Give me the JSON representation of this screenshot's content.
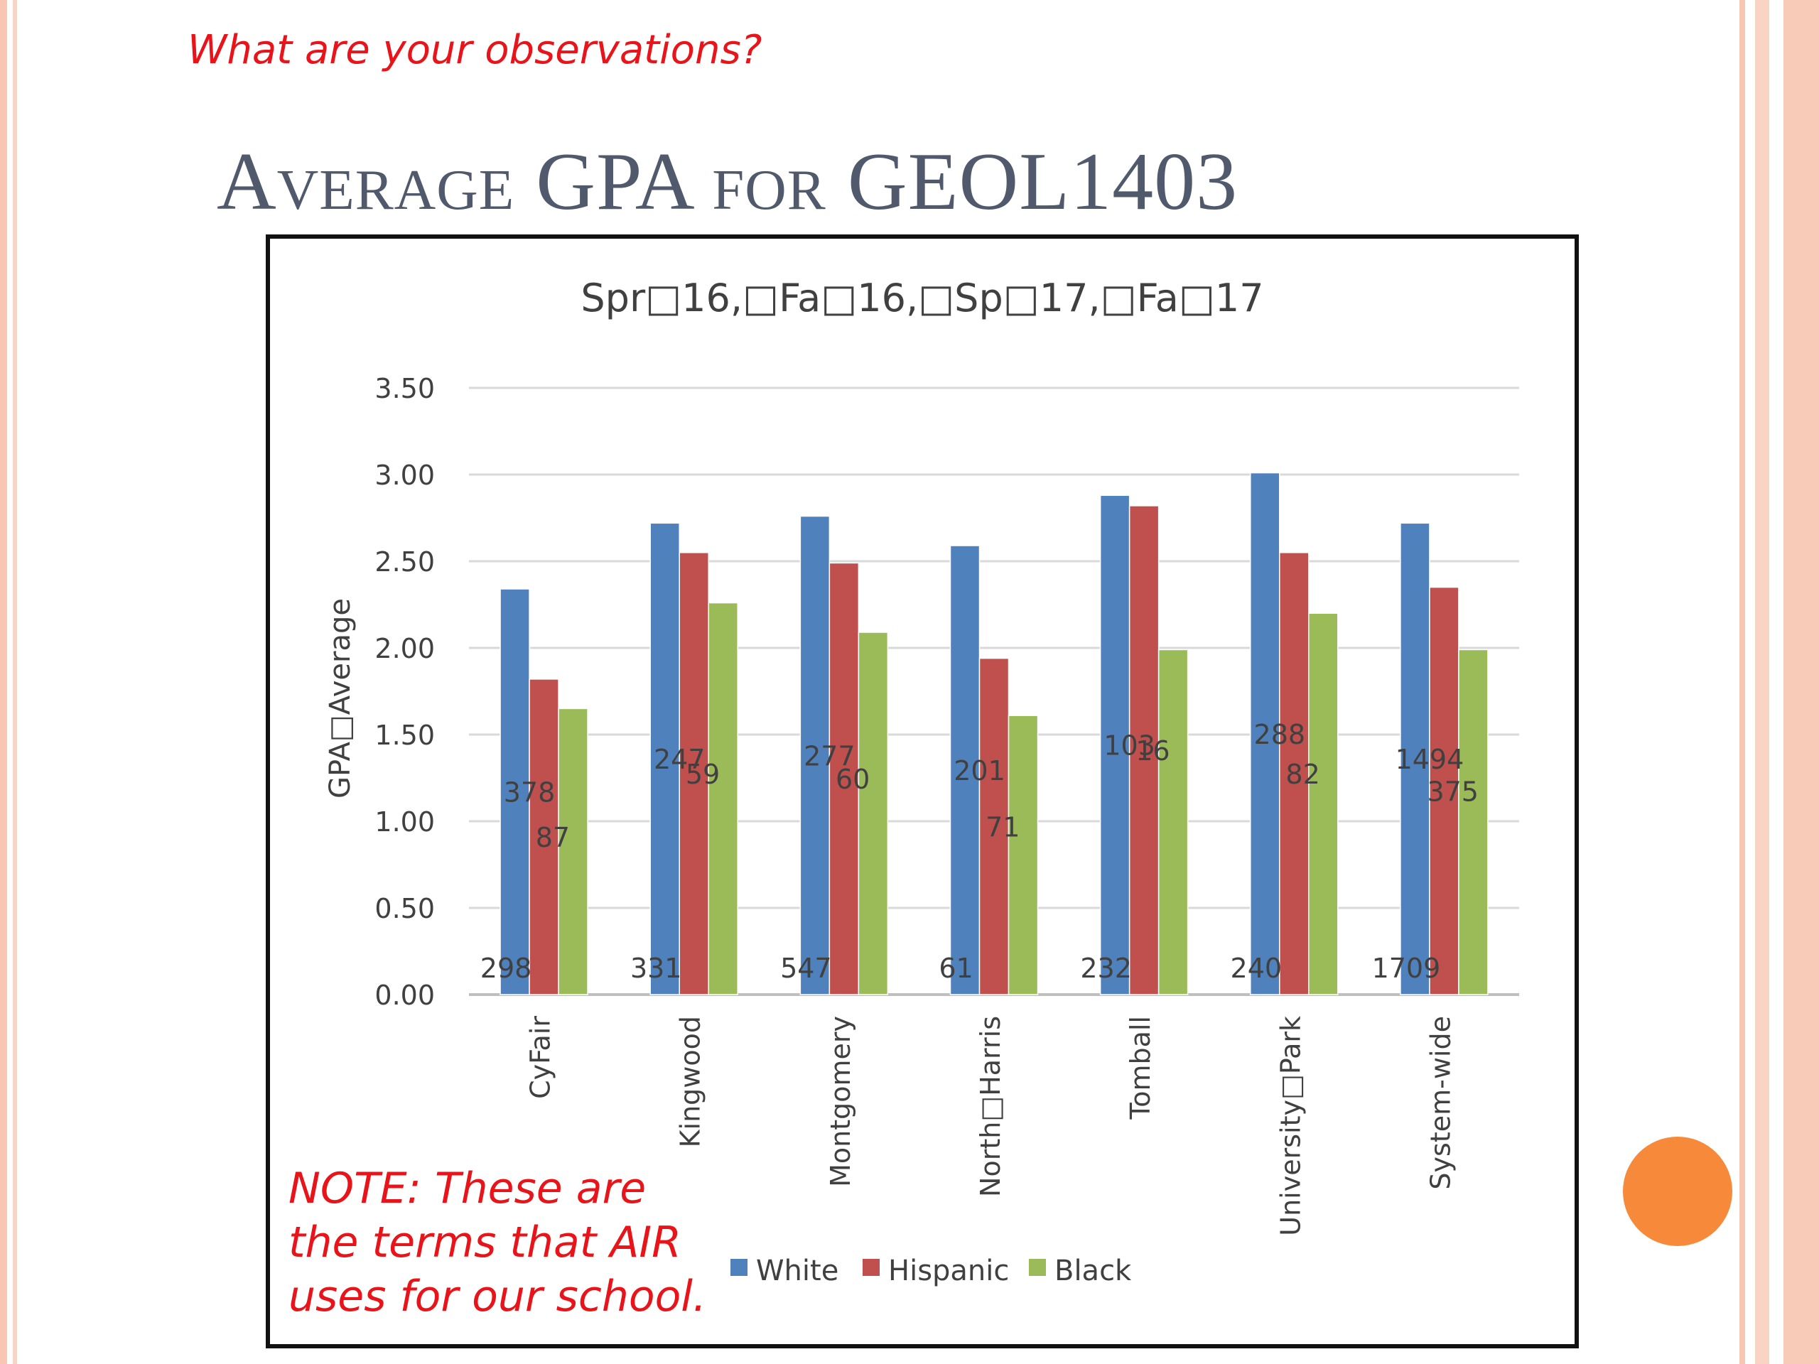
{
  "prompt": "What are your observations?",
  "slide_title": "Average GPA for GEOL1403",
  "note": {
    "lines": [
      "NOTE: These are",
      "the terms that AIR",
      "uses for our school."
    ]
  },
  "chart_data": {
    "type": "bar",
    "title": "Spr 16, Fa 16, Sp 17, Fa 17",
    "title_display": "Spr□16,□Fa□16,□Sp□17,□Fa□17",
    "xlabel": "",
    "ylabel": "GPA□Average",
    "ylim": [
      0,
      3.5
    ],
    "yticks": [
      "0.00",
      "0.50",
      "1.00",
      "1.50",
      "2.00",
      "2.50",
      "3.00",
      "3.50"
    ],
    "categories": [
      "CyFair",
      "Kingwood",
      "Montgomery",
      "North□Harris",
      "Tomball",
      "University□Park",
      "System-wide"
    ],
    "series": [
      {
        "name": "White",
        "color": "#4f81bd",
        "values": [
          2.34,
          2.72,
          2.76,
          2.59,
          2.88,
          3.01,
          2.72
        ],
        "labels": [
          "298",
          "331",
          "547",
          "61",
          "232",
          "240",
          "1709"
        ]
      },
      {
        "name": "Hispanic",
        "color": "#c0504d",
        "values": [
          1.82,
          2.55,
          2.49,
          1.94,
          2.82,
          2.55,
          2.35
        ],
        "labels": [
          "378",
          "247",
          "277",
          "201",
          "103",
          "288",
          "1494"
        ]
      },
      {
        "name": "Black",
        "color": "#9bbb59",
        "values": [
          1.65,
          2.26,
          2.09,
          1.61,
          1.99,
          2.2,
          1.99
        ],
        "labels": [
          "87",
          "59",
          "60",
          "71",
          "16",
          "82",
          "375"
        ]
      }
    ],
    "grid": true,
    "legend": "bottom"
  }
}
